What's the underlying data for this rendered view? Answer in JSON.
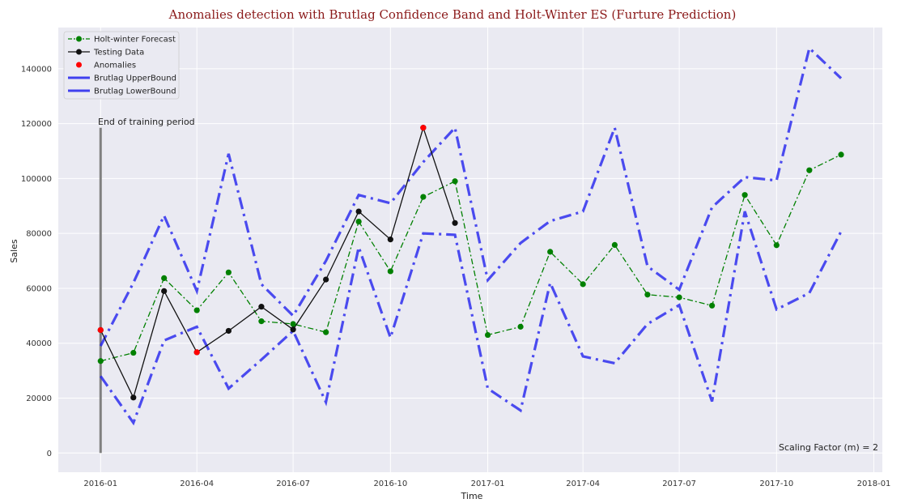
{
  "chart_data": {
    "type": "line",
    "title": "Anomalies detection with Brutlag Confidence Band and Holt-Winter ES (Furture Prediction)",
    "xlabel": "Time",
    "ylabel": "Sales",
    "xlim": [
      "2015-11-22",
      "2018-01-09"
    ],
    "ylim": [
      -7000,
      155000
    ],
    "grid": true,
    "background": "#eaeaf2",
    "legend_position": "top-left",
    "x_ticks": [
      {
        "date": "2016-01-01",
        "label": "2016-01"
      },
      {
        "date": "2016-04-01",
        "label": "2016-04"
      },
      {
        "date": "2016-07-01",
        "label": "2016-07"
      },
      {
        "date": "2016-10-01",
        "label": "2016-10"
      },
      {
        "date": "2017-01-01",
        "label": "2017-01"
      },
      {
        "date": "2017-04-01",
        "label": "2017-04"
      },
      {
        "date": "2017-07-01",
        "label": "2017-07"
      },
      {
        "date": "2017-10-01",
        "label": "2017-10"
      },
      {
        "date": "2018-01-01",
        "label": "2018-01"
      }
    ],
    "y_ticks": [
      0,
      20000,
      40000,
      60000,
      80000,
      100000,
      120000,
      140000
    ],
    "series": [
      {
        "name": "Holt-winter Forecast",
        "color": "#008000",
        "style": "dashdot-marker",
        "points": [
          [
            "2016-01-01",
            33500
          ],
          [
            "2016-02-01",
            36500
          ],
          [
            "2016-03-01",
            63700
          ],
          [
            "2016-04-01",
            52000
          ],
          [
            "2016-05-01",
            65800
          ],
          [
            "2016-06-01",
            48000
          ],
          [
            "2016-07-01",
            47000
          ],
          [
            "2016-08-01",
            44000
          ],
          [
            "2016-09-01",
            84300
          ],
          [
            "2016-10-01",
            66200
          ],
          [
            "2016-11-01",
            93300
          ],
          [
            "2016-12-01",
            99000
          ],
          [
            "2017-01-01",
            43000
          ],
          [
            "2017-02-01",
            46000
          ],
          [
            "2017-03-01",
            73300
          ],
          [
            "2017-04-01",
            61500
          ],
          [
            "2017-05-01",
            75800
          ],
          [
            "2017-06-01",
            57700
          ],
          [
            "2017-07-01",
            56700
          ],
          [
            "2017-08-01",
            53700
          ],
          [
            "2017-09-01",
            94000
          ],
          [
            "2017-10-01",
            75700
          ],
          [
            "2017-11-01",
            103000
          ],
          [
            "2017-12-01",
            108700
          ]
        ]
      },
      {
        "name": "Testing Data",
        "color": "#111111",
        "style": "solid-marker",
        "points": [
          [
            "2016-01-01",
            44800
          ],
          [
            "2016-02-01",
            20200
          ],
          [
            "2016-03-01",
            59000
          ],
          [
            "2016-04-01",
            36700
          ],
          [
            "2016-05-01",
            44500
          ],
          [
            "2016-06-01",
            53300
          ],
          [
            "2016-07-01",
            45000
          ],
          [
            "2016-08-01",
            63200
          ],
          [
            "2016-09-01",
            88000
          ],
          [
            "2016-10-01",
            77800
          ],
          [
            "2016-11-01",
            118500
          ],
          [
            "2016-12-01",
            83800
          ]
        ]
      },
      {
        "name": "Anomalies",
        "color": "#ff0000",
        "style": "marker",
        "points": [
          [
            "2016-01-01",
            44800
          ],
          [
            "2016-04-01",
            36700
          ],
          [
            "2016-11-01",
            118500
          ]
        ]
      },
      {
        "name": "Brutlag UpperBound",
        "color": "#2222ee",
        "style": "dashdot-thick",
        "points": [
          [
            "2016-01-01",
            39000
          ],
          [
            "2016-02-01",
            62000
          ],
          [
            "2016-03-01",
            86500
          ],
          [
            "2016-04-01",
            59000
          ],
          [
            "2016-05-01",
            109000
          ],
          [
            "2016-06-01",
            61500
          ],
          [
            "2016-07-01",
            50000
          ],
          [
            "2016-08-01",
            70000
          ],
          [
            "2016-09-01",
            94000
          ],
          [
            "2016-10-01",
            91000
          ],
          [
            "2016-11-01",
            106000
          ],
          [
            "2016-12-01",
            118500
          ],
          [
            "2017-01-01",
            63000
          ],
          [
            "2017-02-01",
            76500
          ],
          [
            "2017-03-01",
            84500
          ],
          [
            "2017-04-01",
            88000
          ],
          [
            "2017-05-01",
            118500
          ],
          [
            "2017-06-01",
            68000
          ],
          [
            "2017-07-01",
            59500
          ],
          [
            "2017-08-01",
            89500
          ],
          [
            "2017-09-01",
            100500
          ],
          [
            "2017-10-01",
            99300
          ],
          [
            "2017-11-01",
            147500
          ],
          [
            "2017-12-01",
            136500
          ]
        ]
      },
      {
        "name": "Brutlag LowerBound",
        "color": "#2222ee",
        "style": "dashdot-thick",
        "points": [
          [
            "2016-01-01",
            28000
          ],
          [
            "2016-02-01",
            11000
          ],
          [
            "2016-03-01",
            41000
          ],
          [
            "2016-04-01",
            46000
          ],
          [
            "2016-05-01",
            23500
          ],
          [
            "2016-06-01",
            34000
          ],
          [
            "2016-07-01",
            44500
          ],
          [
            "2016-08-01",
            18500
          ],
          [
            "2016-09-01",
            75000
          ],
          [
            "2016-10-01",
            42000
          ],
          [
            "2016-11-01",
            80000
          ],
          [
            "2016-12-01",
            79500
          ],
          [
            "2017-01-01",
            23500
          ],
          [
            "2017-02-01",
            15500
          ],
          [
            "2017-03-01",
            62000
          ],
          [
            "2017-04-01",
            35200
          ],
          [
            "2017-05-01",
            32700
          ],
          [
            "2017-06-01",
            47000
          ],
          [
            "2017-07-01",
            53900
          ],
          [
            "2017-08-01",
            18800
          ],
          [
            "2017-09-01",
            88000
          ],
          [
            "2017-10-01",
            52300
          ],
          [
            "2017-11-01",
            58300
          ],
          [
            "2017-12-01",
            80700
          ]
        ]
      }
    ],
    "training_end": {
      "date": "2016-01-01",
      "ymin": 0,
      "ymax": 118500,
      "color": "#808080"
    },
    "annotations": {
      "training_end_label": "End of training period",
      "scaling_factor_label": "Scaling Factor (m) = 2"
    }
  }
}
